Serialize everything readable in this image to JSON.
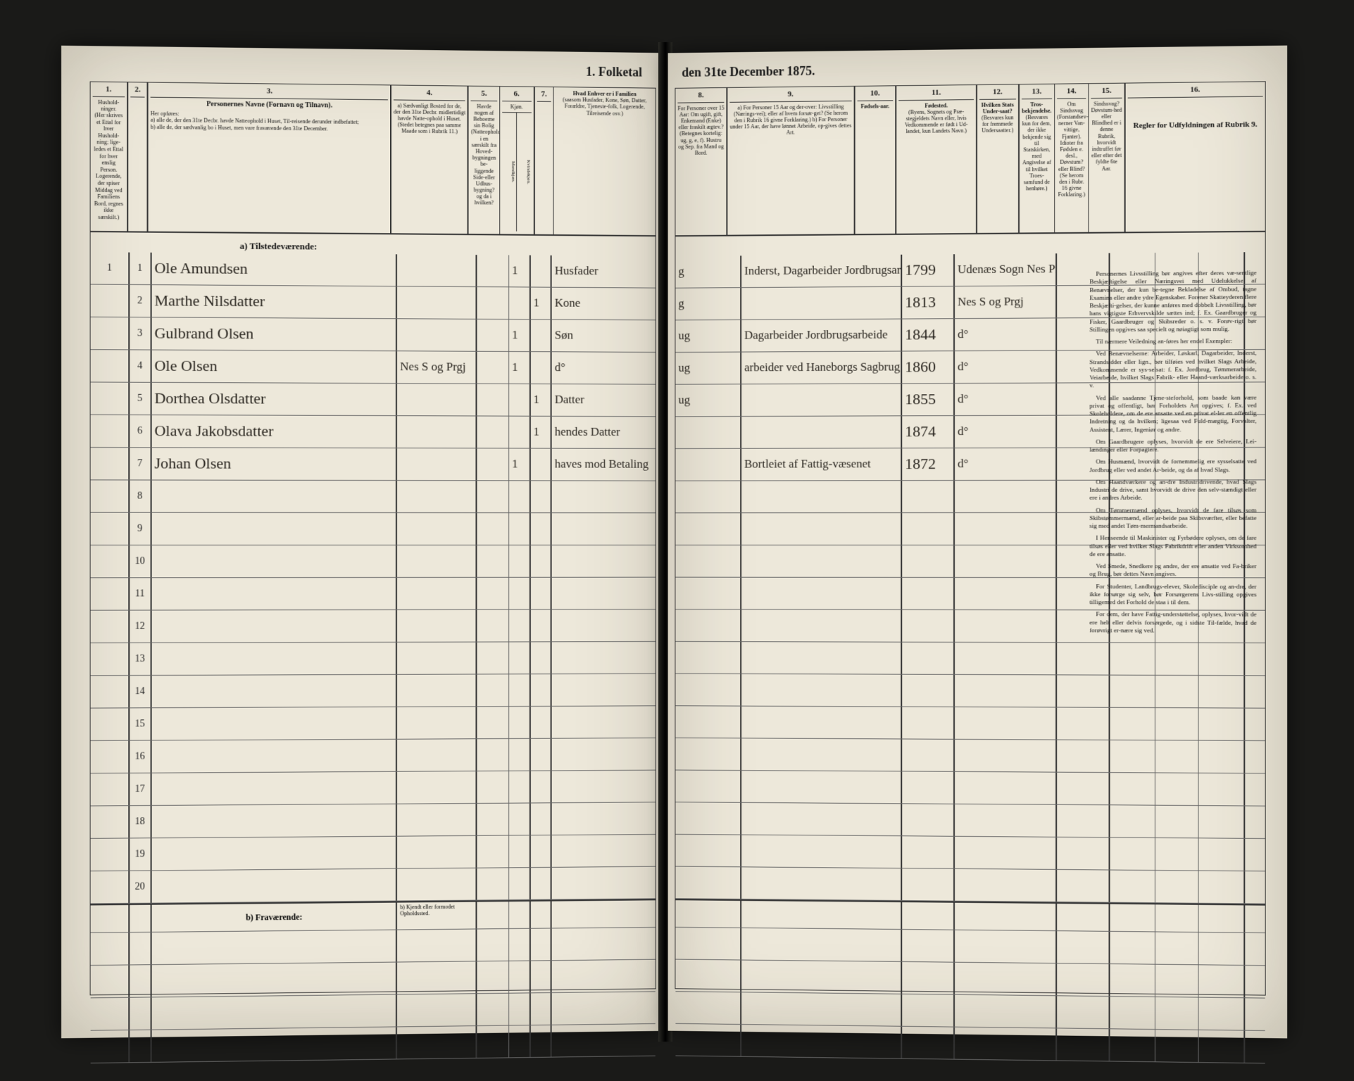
{
  "census": {
    "title_left": "1. Folketal",
    "title_right": "den 31te December 1875.",
    "columns": {
      "1": "Hushold-ninger.",
      "1_sub": "(Her skrives et Ettal for hver Hushold-ning; lige-ledes et Ettal for hver enslig Person. Logerende, der spiser Middag ved Familiens Bord, regnes ikke særskilt.)",
      "2": "",
      "3": "Personernes Navne (Fornavn og Tilnavn).",
      "3_sub_label": "Her opføres:",
      "3_sub_a": "a) alle de, der den 31te Decbr. havde Natteophold i Huset, Til-reisende derunder indbefattet;",
      "3_sub_b": "b) alle de, der sædvanlig bo i Huset, men vare fraværende den 31te December.",
      "4": "a) Sædvanligt Bosted for de, der den 31te Decbr. midlertidigt havde Natte-ophold i Huset. (Stedet betegnes paa samme Maade som i Rubrik 11.)",
      "5": "Havde nogen af Beboerne sin Bolig (Natteophold) i en særskilt fra Hoved-bygningen be-liggende Side-eller Udhus-bygning? og da i hvilken?",
      "6": "Kjøn.",
      "6_sub_m": "Mandkjøn.",
      "6_sub_k": "Kvindekjøn.",
      "7": "Hvad Enhver er i Familien",
      "7_sub": "(saasom Husfader, Kone, Søn, Datter, Forældre, Tjeneste-folk, Logerende, Tilreisende osv.)",
      "8": "For Personer over 15 Aar: Om ugift, gift, Enkemand (Enke) eller fraskilt ægtev.? (Betegnes kortelig: ug, g, e, f). Hustru og Sep. fra Mand og Bord.",
      "9": "a) For Personer 15 Aar og der-over: Livsstilling (Nærings-vei); eller af hvem forsør-get? (Se herom den i Rubrik 16 givne Forklaring.) b) For Personer under 15 Aar, der have lønnet Arbeide, op-gives dettes Art.",
      "10": "Fødsels-aar.",
      "11": "Fødested.",
      "11_sub": "(Byens, Sognets og Præ-stegjeldets Navn eller, hvis Vedkommende er født i Ud-landet, kun Landets Navn.)",
      "12": "Hvilken Stats Under-saat?",
      "12_sub": "(Besvares kun for fremmede Undersaatter.)",
      "13": "Tros-bekjendelse.",
      "13_sub": "(Besvares kun for dem, der ikke bekjende sig til Statskirken, med Angivelse af til hvilket Troes-samfund de henhøre.)",
      "14": "Om Sindssvag (Forstandsev-nerner Van-vittige, Fjanter). Idioter fra Fødslen e. desl., Døvstum? eller Blind? (Se herom den i Rubr. 16 givne Forklaring.)",
      "15": "Sindssvag? Døvstum-hed eller Blindhed er i denne Rubrik, hvorvidt indtruffet før eller efter det fyldte 6te Aar.",
      "16": "Regler for Udfyldningen af Rubrik 9."
    },
    "section_a": "a) Tilstedeværende:",
    "section_b": "b) Fraværende:",
    "section_b_col4": "b) Kjendt eller formodet Opholdssted.",
    "rows": [
      {
        "n": "1",
        "hh": "1",
        "name": "Ole Amundsen",
        "col4": "",
        "col5": "",
        "sexM": "1",
        "sexK": "",
        "fam": "Husfader",
        "civ": "g",
        "occ": "Inderst, Dagarbeider Jordbrugsarbeide",
        "year": "1799",
        "place": "Udenæs Sogn Nes Prgj"
      },
      {
        "n": "2",
        "hh": "",
        "name": "Marthe Nilsdatter",
        "col4": "",
        "col5": "",
        "sexM": "",
        "sexK": "1",
        "fam": "Kone",
        "civ": "g",
        "occ": "",
        "year": "1813",
        "place": "Nes S og Prgj"
      },
      {
        "n": "3",
        "hh": "",
        "name": "Gulbrand Olsen",
        "col4": "",
        "col5": "",
        "sexM": "1",
        "sexK": "",
        "fam": "Søn",
        "civ": "ug",
        "occ": "Dagarbeider Jordbrugsarbeide",
        "year": "1844",
        "place": "d°"
      },
      {
        "n": "4",
        "hh": "",
        "name": "Ole Olsen",
        "col4": "Nes S og Prgj",
        "col5": "",
        "sexM": "1",
        "sexK": "",
        "fam": "d°",
        "civ": "ug",
        "occ": "arbeider ved Haneborgs Sagbrug i Sørum",
        "year": "1860",
        "place": "d°"
      },
      {
        "n": "5",
        "hh": "",
        "name": "Dorthea Olsdatter",
        "col4": "",
        "col5": "",
        "sexM": "",
        "sexK": "1",
        "fam": "Datter",
        "civ": "ug",
        "occ": "",
        "year": "1855",
        "place": "d°"
      },
      {
        "n": "6",
        "hh": "",
        "name": "Olava Jakobsdatter",
        "col4": "",
        "col5": "",
        "sexM": "",
        "sexK": "1",
        "fam": "hendes Datter",
        "civ": "",
        "occ": "",
        "year": "1874",
        "place": "d°"
      },
      {
        "n": "7",
        "hh": "",
        "name": "Johan Olsen",
        "col4": "",
        "col5": "",
        "sexM": "1",
        "sexK": "",
        "fam": "haves mod Betaling",
        "civ": "",
        "occ": "Bortleiet af Fattig-væsenet",
        "year": "1872",
        "place": "d°"
      }
    ],
    "empty_rows_a": [
      "8",
      "9",
      "10",
      "11",
      "12",
      "13",
      "14",
      "15",
      "16",
      "17",
      "18",
      "19",
      "20"
    ],
    "instructions_title": "Regler for Udfyldningen af Rubrik 9.",
    "instructions": [
      "Personernes Livsstilling bør angives efter deres væ-sentlige Beskjæftigelse eller Næringsvei med Udelukkelse af Benævnelser, der kun be-tegne Bekladelse af Ombud, tagne Examina eller andre ydre Egenskaber. Forener Skatteyderen flere Beskjæfti-gelser, der kunne anføres med dobbelt Livsstilling, bør hans vigtigste Erhvervskilde sættes ind; f. Ex. Gaardbruger og Fisker, Gaardbruger og Skibsreder o. s. v. Forøv-rigt bør Stillingen opgives saa specielt og nøiagtigt som mulig.",
      "Til nærmere Veiledning an-føres her endel Exempler:",
      "Ved Benævnelserne: Arbeider, Løskarl, Dagarbeider, Inderst, Strandsidder eller lign., bør tilføies ved hvilket Slags Arbeide, Vedkommende er sys-selsat: f. Ex. Jordbrug, Tømmerarbeide, Veiarbeide, hvilket Slags Fabrik- eller Haand-værksarbeide o. s. v.",
      "Ved alle saadanne Tjene-steforhold, som baade kan være privat og offentligt, bør Forholdets Art opgives; f. Ex. ved Skoleholdere, om de ere ansatte ved en privat el-ler en offentlig Indretning og da hvilken; ligesaa ved Fuld-mægtig, Forvalter, Assistent, Lærer, Ingeniør og andre.",
      "Om Gaardbrugere oplyses, hvorvidt de ere Selveiere, Lei-lændinger eller Forpagtere.",
      "Om Husmænd, hvorvidt de fornemmelig ere sysselsatte ved Jordbrug eller ved andet Ar-beide, og da af hvad Slags.",
      "Om Haandværkere og an-dre Industridrivende, hvad Slags Industri de drive, samt hvorvidt de drive den selv-stændigt eller ere i andres Arbeide.",
      "Om Tømmermænd oplyses, hvorvidt de fare tilsøs som Skibstømmermænd, eller ar-beide paa Skibsværfter, eller befatte sig med andet Tøm-mermandsarbeide.",
      "I Henseende til Maskinister og Fyrbødere oplyses, om de fare tilsøs eller ved hvilket Slags Fabrikdrift eller anden Virksomhed de ere ansatte.",
      "Ved Smede, Snedkere og andre, der ere ansatte ved Fa-briker og Brug, bør dettes Navn angives.",
      "For Studenter, Landbrugs-elever, Skoledisciple og an-dre, der ikke forsørge sig selv, bør Forsørgerens Livs-stilling opgives tilligemed det Forhold de staa i til dem.",
      "For dem, der have Fattig-understøttelse, oplyses, hvor-vidt de ere helt eller delvis forsørgede, og i sidste Til-fælde, hvad de forøvrigt er-nære sig ved."
    ]
  },
  "colors": {
    "paper": "#ede8da",
    "ink": "#1a1a1a",
    "script": "#2a2620",
    "rule": "#333333",
    "bg": "#0a0a0a"
  }
}
